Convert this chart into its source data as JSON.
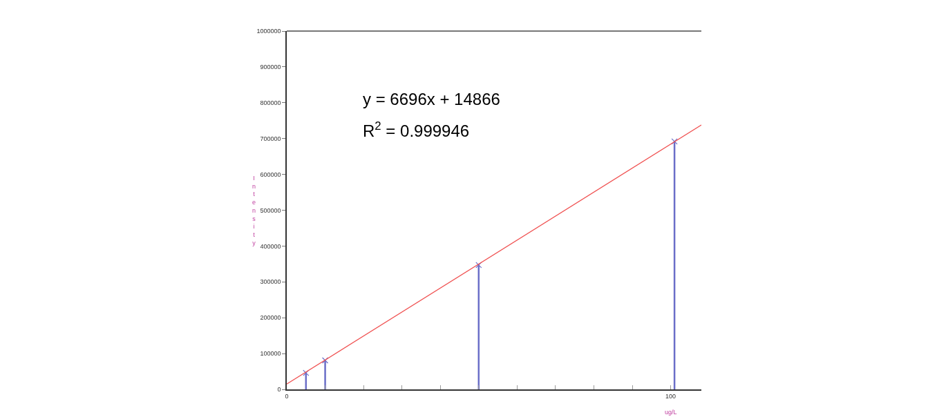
{
  "chart_data": {
    "type": "lollipop",
    "xlabel": "ug/L",
    "ylabel": "Intensity",
    "x": [
      5,
      10,
      50,
      101
    ],
    "series": [
      {
        "color": "#6a6ec8",
        "values": [
          46000,
          81000,
          347000,
          692000
        ],
        "marker": "cross"
      },
      {
        "type": "line",
        "color": "#f05050",
        "x": [
          0,
          108
        ],
        "values": [
          15000,
          738000
        ],
        "marker": "none",
        "line_style": "solid"
      }
    ],
    "xlim": [
      0,
      108
    ],
    "xticks": [
      0,
      {
        "value": 10,
        "label": null
      },
      {
        "value": 20,
        "label": null
      },
      {
        "value": 30,
        "label": null
      },
      {
        "value": 40,
        "label": null
      },
      {
        "value": 50,
        "label": null
      },
      {
        "value": 60,
        "label": null
      },
      {
        "value": 70,
        "label": null
      },
      {
        "value": 80,
        "label": null
      },
      {
        "value": 90,
        "label": null
      },
      100
    ],
    "ylim": [
      0,
      1000000
    ],
    "yticks": [
      0,
      100000,
      200000,
      300000,
      400000,
      500000,
      600000,
      700000,
      800000,
      900000,
      1000000
    ],
    "annotations": [
      "y = 6696x + 14866",
      "R$^{2}$ = 0.999946"
    ]
  }
}
